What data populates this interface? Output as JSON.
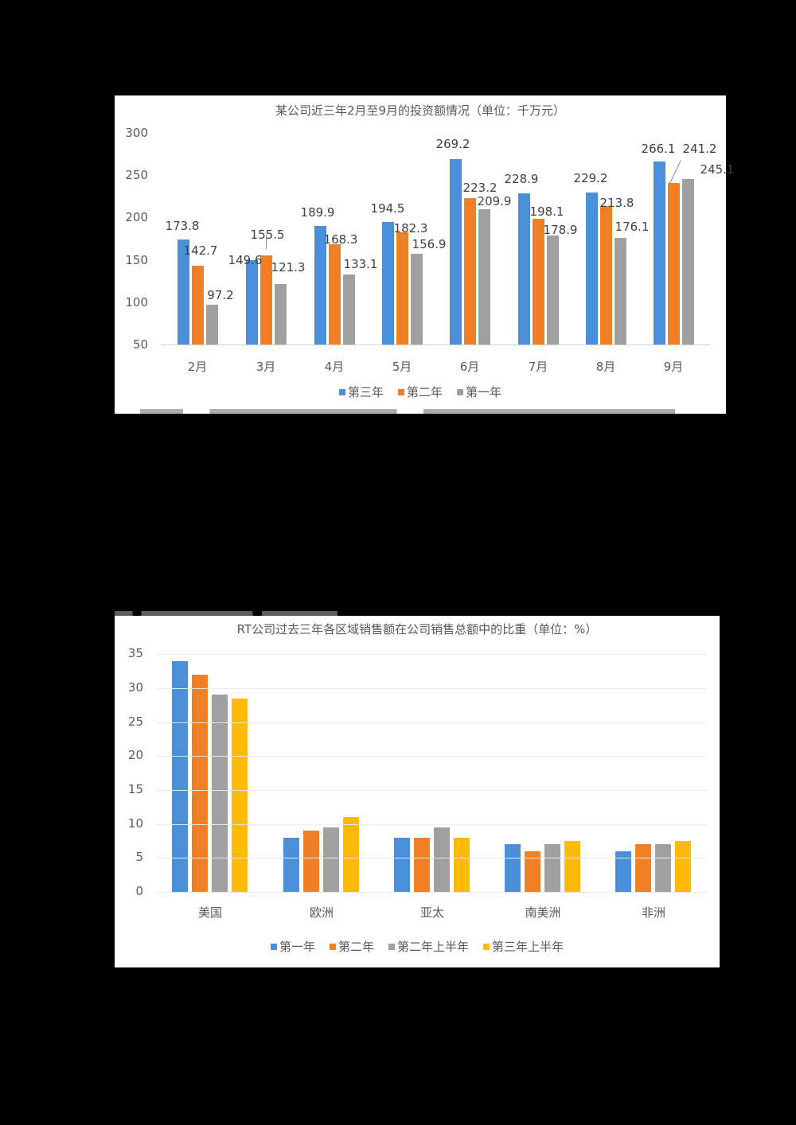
{
  "colors": {
    "blue": "#4a8fd9",
    "orange": "#f07f26",
    "gray": "#a0a0a0",
    "yellow": "#ffba0a"
  },
  "chart_data": [
    {
      "type": "bar",
      "title": "某公司近三年2月至9月的投资额情况（单位：千万元）",
      "xlabel": "",
      "ylabel": "",
      "categories": [
        "2月",
        "3月",
        "4月",
        "5月",
        "6月",
        "7月",
        "8月",
        "9月"
      ],
      "series": [
        {
          "name": "第三年",
          "color": "#4a8fd9",
          "values": [
            173.8,
            149.6,
            189.9,
            194.5,
            269.2,
            228.9,
            229.2,
            266.1
          ]
        },
        {
          "name": "第二年",
          "color": "#f07f26",
          "values": [
            142.7,
            155.5,
            168.3,
            182.3,
            223.2,
            198.1,
            213.8,
            241.2
          ]
        },
        {
          "name": "第一年",
          "color": "#a0a0a0",
          "values": [
            97.2,
            121.3,
            133.1,
            156.9,
            209.9,
            178.9,
            176.1,
            245.1
          ]
        }
      ],
      "yticks": [
        300,
        250,
        200,
        150,
        100,
        50
      ],
      "ylim": [
        50,
        300
      ],
      "grid": false,
      "data_labels": true,
      "legend_position": "bottom"
    },
    {
      "type": "bar",
      "title": "RT公司过去三年各区域销售额在公司销售总额中的比重（单位：%）",
      "xlabel": "",
      "ylabel": "",
      "categories": [
        "美国",
        "欧洲",
        "亚太",
        "南美洲",
        "非洲"
      ],
      "series": [
        {
          "name": "第一年",
          "color": "#4a8fd9",
          "values": [
            34,
            8,
            8,
            7,
            6
          ]
        },
        {
          "name": "第二年",
          "color": "#f07f26",
          "values": [
            32,
            9,
            8,
            6,
            7
          ]
        },
        {
          "name": "第二年上半年",
          "color": "#a0a0a0",
          "values": [
            29,
            9.5,
            9.5,
            7,
            7
          ]
        },
        {
          "name": "第三年上半年",
          "color": "#ffba0a",
          "values": [
            28.5,
            11,
            8,
            7.5,
            7.5
          ]
        }
      ],
      "yticks": [
        35,
        30,
        25,
        20,
        15,
        10,
        5,
        0
      ],
      "ylim": [
        0,
        35
      ],
      "grid": true,
      "data_labels": false,
      "legend_position": "bottom"
    }
  ]
}
